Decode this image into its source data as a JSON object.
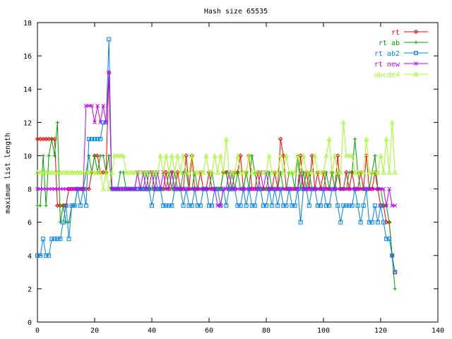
{
  "chart_data": {
    "type": "line",
    "title": "Hash size 65535",
    "xlabel": "",
    "ylabel": "maximum list length",
    "xlim": [
      0,
      140
    ],
    "ylim": [
      0,
      18
    ],
    "xticks": [
      "0",
      "20",
      "40",
      "60",
      "80",
      "100",
      "120",
      "140"
    ],
    "yticks": [
      "0",
      "2",
      "4",
      "6",
      "8",
      "10",
      "12",
      "14",
      "16",
      "18"
    ],
    "grid": false,
    "legend_position": "top-right",
    "series": [
      {
        "name": "rt",
        "color": "#ff0000",
        "marker": "diamond",
        "x": [
          0,
          1,
          2,
          3,
          4,
          5,
          6,
          7,
          8,
          9,
          10,
          11,
          12,
          13,
          14,
          15,
          16,
          17,
          18,
          19,
          20,
          21,
          22,
          23,
          24,
          25,
          26,
          27,
          28,
          29,
          30,
          31,
          32,
          33,
          34,
          35,
          36,
          37,
          38,
          39,
          40,
          41,
          42,
          43,
          44,
          45,
          46,
          47,
          48,
          49,
          50,
          51,
          52,
          53,
          54,
          55,
          56,
          57,
          58,
          59,
          60,
          61,
          62,
          63,
          64,
          65,
          66,
          67,
          68,
          69,
          70,
          71,
          72,
          73,
          74,
          75,
          76,
          77,
          78,
          79,
          80,
          81,
          82,
          83,
          84,
          85,
          86,
          87,
          88,
          89,
          90,
          91,
          92,
          93,
          94,
          95,
          96,
          97,
          98,
          99,
          100,
          101,
          102,
          103,
          104,
          105,
          106,
          107,
          108,
          109,
          110,
          111,
          112,
          113,
          114,
          115,
          116,
          117,
          118,
          119,
          120,
          121,
          122,
          123,
          124,
          125
        ],
        "y": [
          11,
          11,
          11,
          11,
          11,
          11,
          11,
          7,
          7,
          7,
          7,
          8,
          8,
          8,
          8,
          8,
          8,
          8,
          8,
          9,
          10,
          10,
          9,
          9,
          9,
          15,
          8,
          8,
          8,
          8,
          8,
          8,
          8,
          8,
          8,
          8,
          8,
          8,
          8,
          8,
          9,
          8,
          8,
          8,
          8,
          9,
          8,
          9,
          8,
          9,
          8,
          8,
          10,
          8,
          10,
          8,
          8,
          9,
          8,
          8,
          9,
          8,
          8,
          8,
          8,
          9,
          9,
          8,
          8,
          9,
          9,
          10,
          8,
          9,
          10,
          8,
          8,
          9,
          8,
          8,
          8,
          8,
          8,
          9,
          8,
          11,
          10,
          8,
          8,
          8,
          8,
          8,
          10,
          8,
          9,
          8,
          10,
          8,
          9,
          8,
          9,
          8,
          8,
          9,
          8,
          10,
          8,
          8,
          9,
          8,
          9,
          8,
          8,
          9,
          8,
          10,
          8,
          8,
          9,
          8,
          7,
          7,
          6,
          6,
          4,
          3
        ]
      },
      {
        "name": "rt ab",
        "color": "#00a000",
        "marker": "plus",
        "x": [
          0,
          1,
          2,
          3,
          4,
          5,
          6,
          7,
          8,
          9,
          10,
          11,
          12,
          13,
          14,
          15,
          16,
          17,
          18,
          19,
          20,
          21,
          22,
          23,
          24,
          25,
          26,
          27,
          28,
          29,
          30,
          31,
          32,
          33,
          34,
          35,
          36,
          37,
          38,
          39,
          40,
          41,
          42,
          43,
          44,
          45,
          46,
          47,
          48,
          49,
          50,
          51,
          52,
          53,
          54,
          55,
          56,
          57,
          58,
          59,
          60,
          61,
          62,
          63,
          64,
          65,
          66,
          67,
          68,
          69,
          70,
          71,
          72,
          73,
          74,
          75,
          76,
          77,
          78,
          79,
          80,
          81,
          82,
          83,
          84,
          85,
          86,
          87,
          88,
          89,
          90,
          91,
          92,
          93,
          94,
          95,
          96,
          97,
          98,
          99,
          100,
          101,
          102,
          103,
          104,
          105,
          106,
          107,
          108,
          109,
          110,
          111,
          112,
          113,
          114,
          115,
          116,
          117,
          118,
          119,
          120,
          121,
          122,
          123,
          124,
          125
        ],
        "y": [
          7,
          7,
          10,
          7,
          10,
          11,
          10,
          12,
          6,
          7,
          6,
          6,
          7,
          7,
          8,
          8,
          8,
          9,
          10,
          9,
          10,
          9,
          10,
          10,
          9,
          10,
          8,
          8,
          8,
          9,
          9,
          8,
          8,
          8,
          8,
          9,
          8,
          8,
          9,
          8,
          8,
          9,
          8,
          8,
          8,
          8,
          9,
          8,
          9,
          8,
          8,
          9,
          9,
          8,
          8,
          9,
          8,
          8,
          8,
          8,
          8,
          9,
          8,
          8,
          8,
          9,
          9,
          8,
          9,
          8,
          9,
          8,
          8,
          9,
          8,
          10,
          9,
          8,
          8,
          8,
          8,
          9,
          8,
          8,
          8,
          9,
          8,
          8,
          9,
          9,
          8,
          10,
          8,
          9,
          8,
          9,
          8,
          8,
          8,
          8,
          8,
          9,
          8,
          9,
          8,
          9,
          8,
          8,
          8,
          9,
          9,
          11,
          9,
          8,
          8,
          8,
          8,
          9,
          10,
          8,
          8,
          7,
          7,
          6,
          4,
          2
        ]
      },
      {
        "name": "rt ab2",
        "color": "#0080ff",
        "marker": "square",
        "x": [
          0,
          1,
          2,
          3,
          4,
          5,
          6,
          7,
          8,
          9,
          10,
          11,
          12,
          13,
          14,
          15,
          16,
          17,
          18,
          19,
          20,
          21,
          22,
          23,
          24,
          25,
          26,
          27,
          28,
          29,
          30,
          31,
          32,
          33,
          34,
          35,
          36,
          37,
          38,
          39,
          40,
          41,
          42,
          43,
          44,
          45,
          46,
          47,
          48,
          49,
          50,
          51,
          52,
          53,
          54,
          55,
          56,
          57,
          58,
          59,
          60,
          61,
          62,
          63,
          64,
          65,
          66,
          67,
          68,
          69,
          70,
          71,
          72,
          73,
          74,
          75,
          76,
          77,
          78,
          79,
          80,
          81,
          82,
          83,
          84,
          85,
          86,
          87,
          88,
          89,
          90,
          91,
          92,
          93,
          94,
          95,
          96,
          97,
          98,
          99,
          100,
          101,
          102,
          103,
          104,
          105,
          106,
          107,
          108,
          109,
          110,
          111,
          112,
          113,
          114,
          115,
          116,
          117,
          118,
          119,
          120,
          121,
          122,
          123,
          124,
          125
        ],
        "y": [
          4,
          4,
          5,
          4,
          4,
          5,
          5,
          5,
          5,
          6,
          7,
          5,
          7,
          7,
          8,
          7,
          8,
          7,
          11,
          11,
          11,
          11,
          11,
          12,
          12,
          17,
          8,
          8,
          8,
          8,
          8,
          8,
          8,
          8,
          8,
          8,
          8,
          8,
          8,
          8,
          7,
          8,
          8,
          8,
          7,
          7,
          7,
          7,
          8,
          8,
          8,
          7,
          8,
          7,
          7,
          8,
          7,
          7,
          8,
          8,
          7,
          7,
          8,
          8,
          7,
          8,
          7,
          8,
          8,
          8,
          7,
          7,
          8,
          7,
          8,
          7,
          7,
          8,
          8,
          7,
          7,
          8,
          7,
          8,
          7,
          8,
          7,
          7,
          8,
          7,
          7,
          8,
          6,
          8,
          8,
          7,
          8,
          8,
          7,
          7,
          8,
          7,
          7,
          8,
          8,
          7,
          6,
          7,
          7,
          7,
          7,
          8,
          7,
          6,
          7,
          8,
          6,
          6,
          7,
          6,
          7,
          6,
          5,
          5,
          4,
          3
        ]
      },
      {
        "name": "rt new",
        "color": "#c000ff",
        "marker": "x",
        "x": [
          0,
          1,
          2,
          3,
          4,
          5,
          6,
          7,
          8,
          9,
          10,
          11,
          12,
          13,
          14,
          15,
          16,
          17,
          18,
          19,
          20,
          21,
          22,
          23,
          24,
          25,
          26,
          27,
          28,
          29,
          30,
          31,
          32,
          33,
          34,
          35,
          36,
          37,
          38,
          39,
          40,
          41,
          42,
          43,
          44,
          45,
          46,
          47,
          48,
          49,
          50,
          51,
          52,
          53,
          54,
          55,
          56,
          57,
          58,
          59,
          60,
          61,
          62,
          63,
          64,
          65,
          66,
          67,
          68,
          69,
          70,
          71,
          72,
          73,
          74,
          75,
          76,
          77,
          78,
          79,
          80,
          81,
          82,
          83,
          84,
          85,
          86,
          87,
          88,
          89,
          90,
          91,
          92,
          93,
          94,
          95,
          96,
          97,
          98,
          99,
          100,
          101,
          102,
          103,
          104,
          105,
          106,
          107,
          108,
          109,
          110,
          111,
          112,
          113,
          114,
          115,
          116,
          117,
          118,
          119,
          120,
          121,
          122,
          123,
          124,
          125
        ],
        "y": [
          8,
          8,
          8,
          8,
          8,
          8,
          8,
          8,
          8,
          8,
          8,
          8,
          8,
          8,
          8,
          8,
          8,
          13,
          13,
          13,
          12,
          13,
          12,
          13,
          12,
          15,
          8,
          8,
          8,
          8,
          8,
          8,
          8,
          8,
          8,
          9,
          8,
          9,
          8,
          9,
          9,
          8,
          9,
          8,
          9,
          8,
          8,
          9,
          8,
          8,
          8,
          8,
          8,
          8,
          8,
          8,
          8,
          8,
          8,
          8,
          8,
          8,
          8,
          7,
          7,
          8,
          8,
          9,
          8,
          8,
          8,
          8,
          8,
          8,
          8,
          8,
          8,
          8,
          9,
          8,
          9,
          8,
          8,
          8,
          8,
          8,
          8,
          8,
          8,
          8,
          8,
          8,
          9,
          8,
          8,
          8,
          8,
          8,
          8,
          8,
          8,
          8,
          8,
          8,
          8,
          8,
          8,
          8,
          8,
          8,
          8,
          8,
          8,
          8,
          8,
          8,
          8,
          8,
          8,
          8,
          8,
          8,
          7,
          8,
          7,
          7
        ]
      },
      {
        "name": "abcde4",
        "color": "#a0ff20",
        "marker": "triangle",
        "x": [
          0,
          1,
          2,
          3,
          4,
          5,
          6,
          7,
          8,
          9,
          10,
          11,
          12,
          13,
          14,
          15,
          16,
          17,
          18,
          19,
          20,
          21,
          22,
          23,
          24,
          25,
          26,
          27,
          28,
          29,
          30,
          31,
          32,
          33,
          34,
          35,
          36,
          37,
          38,
          39,
          40,
          41,
          42,
          43,
          44,
          45,
          46,
          47,
          48,
          49,
          50,
          51,
          52,
          53,
          54,
          55,
          56,
          57,
          58,
          59,
          60,
          61,
          62,
          63,
          64,
          65,
          66,
          67,
          68,
          69,
          70,
          71,
          72,
          73,
          74,
          75,
          76,
          77,
          78,
          79,
          80,
          81,
          82,
          83,
          84,
          85,
          86,
          87,
          88,
          89,
          90,
          91,
          92,
          93,
          94,
          95,
          96,
          97,
          98,
          99,
          100,
          101,
          102,
          103,
          104,
          105,
          106,
          107,
          108,
          109,
          110,
          111,
          112,
          113,
          114,
          115,
          116,
          117,
          118,
          119,
          120,
          121,
          122,
          123,
          124,
          125
        ],
        "y": [
          9,
          9,
          9,
          9,
          9,
          9,
          9,
          9,
          9,
          9,
          9,
          9,
          9,
          9,
          9,
          9,
          9,
          9,
          9,
          9,
          9,
          9,
          9,
          8,
          9,
          8,
          9,
          10,
          10,
          10,
          10,
          9,
          9,
          9,
          9,
          9,
          9,
          9,
          9,
          9,
          9,
          9,
          9,
          10,
          9,
          10,
          9,
          10,
          9,
          10,
          9,
          10,
          9,
          9,
          10,
          9,
          9,
          9,
          9,
          10,
          9,
          9,
          10,
          9,
          10,
          9,
          11,
          9,
          9,
          9,
          10,
          9,
          9,
          9,
          10,
          9,
          9,
          9,
          9,
          9,
          9,
          10,
          9,
          9,
          9,
          10,
          9,
          10,
          9,
          9,
          9,
          10,
          9,
          10,
          9,
          9,
          9,
          10,
          9,
          9,
          9,
          10,
          11,
          9,
          10,
          9,
          9,
          12,
          10,
          10,
          10,
          9,
          9,
          9,
          9,
          11,
          9,
          9,
          9,
          9,
          10,
          9,
          11,
          9,
          12,
          9
        ]
      }
    ]
  }
}
